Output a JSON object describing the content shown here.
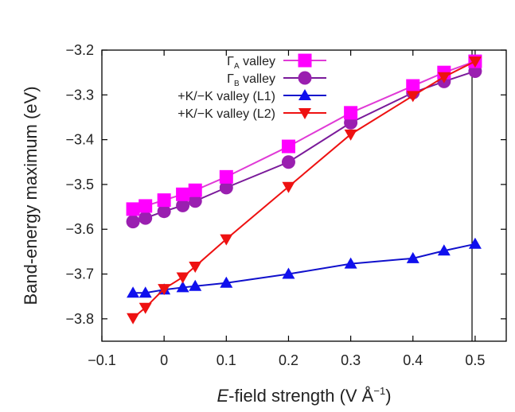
{
  "chart_data": {
    "type": "line",
    "xlabel": {
      "italic": "E",
      "rest": "-field strength (V Å",
      "sup": "−1",
      "close": ")"
    },
    "ylabel": "Band-energy maximum (eV)",
    "xlim": [
      -0.1,
      0.55
    ],
    "ylim": [
      -3.85,
      -3.2
    ],
    "xticks": [
      -0.1,
      0,
      0.1,
      0.2,
      0.3,
      0.4,
      0.5
    ],
    "xtick_labels": [
      "−0.1",
      "0",
      "0.1",
      "0.2",
      "0.3",
      "0.4",
      "0.5"
    ],
    "yticks": [
      -3.2,
      -3.3,
      -3.4,
      -3.5,
      -3.6,
      -3.7,
      -3.8
    ],
    "ytick_labels": [
      "−3.2",
      "−3.3",
      "−3.4",
      "−3.5",
      "−3.6",
      "−3.7",
      "−3.8"
    ],
    "vertical_line_x": 0.495,
    "legend_position": "top-right",
    "series": [
      {
        "key": "gamma-a",
        "name": "ΓA valley",
        "label_main": "Γ",
        "label_sub": "A",
        "label_rest": " valley",
        "color": "#ff00ff",
        "line_color": "#e03ad6",
        "marker": "square",
        "x": [
          -0.05,
          -0.03,
          0,
          0.03,
          0.05,
          0.1,
          0.2,
          0.3,
          0.4,
          0.45,
          0.5
        ],
        "y": [
          -3.555,
          -3.548,
          -3.535,
          -3.522,
          -3.513,
          -3.483,
          -3.415,
          -3.34,
          -3.28,
          -3.25,
          -3.225
        ]
      },
      {
        "key": "gamma-b",
        "name": "ΓB valley",
        "label_main": "Γ",
        "label_sub": "B",
        "label_rest": " valley",
        "color": "#9a1fb0",
        "line_color": "#7a1a9a",
        "marker": "circle",
        "x": [
          -0.05,
          -0.03,
          0,
          0.03,
          0.05,
          0.1,
          0.2,
          0.3,
          0.4,
          0.45,
          0.5
        ],
        "y": [
          -3.583,
          -3.575,
          -3.56,
          -3.547,
          -3.537,
          -3.507,
          -3.45,
          -3.362,
          -3.295,
          -3.27,
          -3.247
        ]
      },
      {
        "key": "k-l1",
        "name": "+K/−K valley (L1)",
        "label_main": "+K/−K valley (L1)",
        "label_sub": "",
        "label_rest": "",
        "color": "#1010ee",
        "line_color": "#1010cc",
        "marker": "triangle-up",
        "x": [
          -0.05,
          -0.03,
          0,
          0.03,
          0.05,
          0.1,
          0.2,
          0.3,
          0.4,
          0.45,
          0.5
        ],
        "y": [
          -3.742,
          -3.742,
          -3.735,
          -3.73,
          -3.727,
          -3.72,
          -3.7,
          -3.677,
          -3.665,
          -3.648,
          -3.633
        ]
      },
      {
        "key": "k-l2",
        "name": "+K/−K valley (L2)",
        "label_main": "+K/−K valley (L2)",
        "label_sub": "",
        "label_rest": "",
        "color": "#ee1111",
        "line_color": "#ee1111",
        "marker": "triangle-down",
        "x": [
          -0.05,
          -0.03,
          0,
          0.03,
          0.05,
          0.1,
          0.2,
          0.3,
          0.4,
          0.45,
          0.5
        ],
        "y": [
          -3.798,
          -3.775,
          -3.733,
          -3.707,
          -3.683,
          -3.622,
          -3.505,
          -3.388,
          -3.302,
          -3.26,
          -3.225
        ]
      }
    ]
  }
}
